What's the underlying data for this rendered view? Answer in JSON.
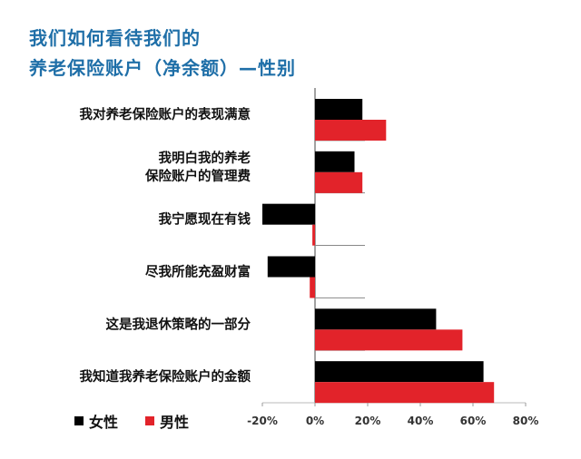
{
  "titles": {
    "line1": "我们如何看待我们的",
    "line2": "养老保险账户（净余额）—性别"
  },
  "legend": {
    "female": "女性",
    "male": "男性"
  },
  "colors": {
    "title": "#1f6fa8",
    "female": "#000000",
    "male": "#e2232a"
  },
  "chart_data": {
    "type": "bar",
    "orientation": "horizontal",
    "title": "我们如何看待我们的 养老保险账户（净余额）—性别",
    "categories": [
      [
        "我对养老保险账户的表现满意"
      ],
      [
        "我明白我的养老",
        "保险账户的管理费"
      ],
      [
        "我宁愿现在有钱"
      ],
      [
        "尽我所能充盈财富"
      ],
      [
        "这是我退休策略的一部分"
      ],
      [
        "我知道我养老保险账户的金额"
      ]
    ],
    "series": [
      {
        "name": "女性",
        "values": [
          18,
          15,
          -20,
          -18,
          46,
          64
        ]
      },
      {
        "name": "男性",
        "values": [
          27,
          18,
          -1,
          -2,
          56,
          68
        ]
      }
    ],
    "xlim": [
      -20,
      80
    ],
    "xticks": [
      -20,
      0,
      20,
      40,
      60,
      80
    ],
    "xtick_labels": [
      "-20%",
      "0%",
      "20%",
      "40%",
      "60%",
      "80%"
    ],
    "xlabel": "",
    "ylabel": "",
    "legend_position": "bottom-left"
  }
}
